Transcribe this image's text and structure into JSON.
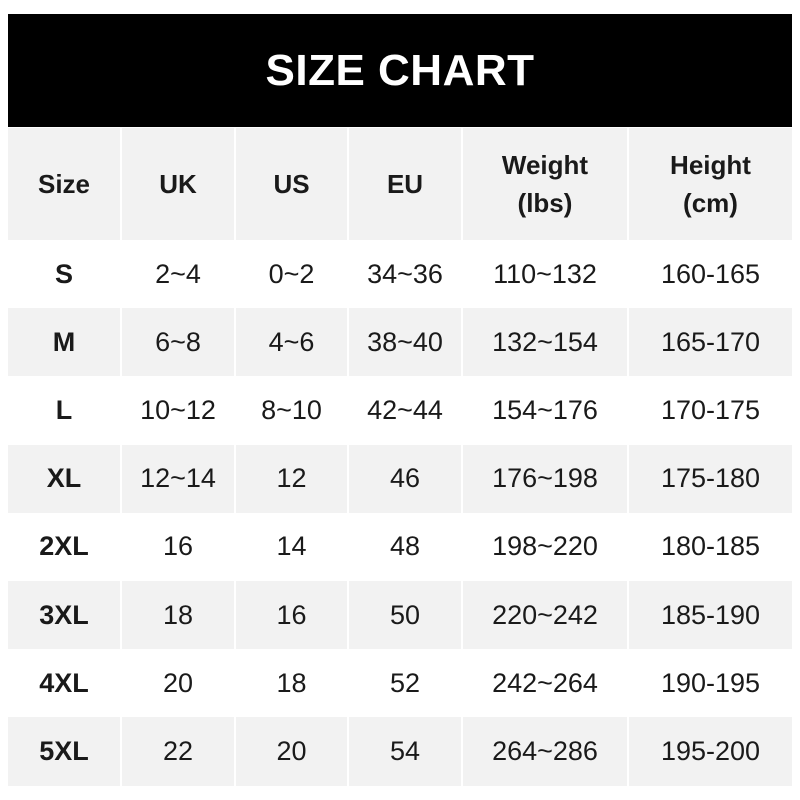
{
  "title": "SIZE CHART",
  "columns": [
    "Size",
    "UK",
    "US",
    "EU",
    "Weight\n(lbs)",
    "Height\n(cm)"
  ],
  "rows": [
    [
      "S",
      "2~4",
      "0~2",
      "34~36",
      "110~132",
      "160-165"
    ],
    [
      "M",
      "6~8",
      "4~6",
      "38~40",
      "132~154",
      "165-170"
    ],
    [
      "L",
      "10~12",
      "8~10",
      "42~44",
      "154~176",
      "170-175"
    ],
    [
      "XL",
      "12~14",
      "12",
      "46",
      "176~198",
      "175-180"
    ],
    [
      "2XL",
      "16",
      "14",
      "48",
      "198~220",
      "180-185"
    ],
    [
      "3XL",
      "18",
      "16",
      "50",
      "220~242",
      "185-190"
    ],
    [
      "4XL",
      "20",
      "18",
      "52",
      "242~264",
      "190-195"
    ],
    [
      "5XL",
      "22",
      "20",
      "54",
      "264~286",
      "195-200"
    ]
  ],
  "colors": {
    "header_bg": "#000000",
    "header_text": "#ffffff",
    "stripe": "#f2f2f2"
  }
}
